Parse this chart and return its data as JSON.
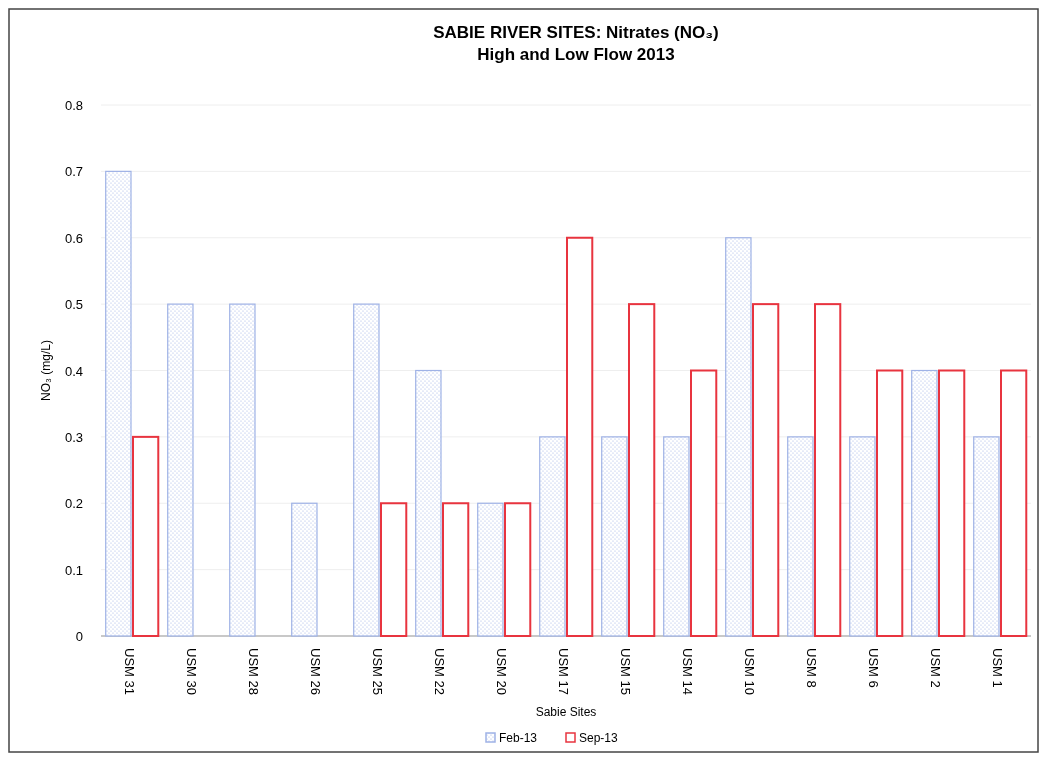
{
  "chart_data": {
    "type": "bar",
    "title": "SABIE RIVER SITES: Nitrates (NO₃)\nHigh and Low Flow 2013",
    "xlabel": "Sabie Sites",
    "ylabel": "NO₃ (mg/L)",
    "categories": [
      "USM 31",
      "USM 30",
      "USM 28",
      "USM 26",
      "USM 25",
      "USM 22",
      "USM 20",
      "USM 17",
      "USM 15",
      "USM 14",
      "USM 10",
      "USM 8",
      "USM 6",
      "USM 2",
      "USM 1"
    ],
    "series": [
      {
        "name": "Feb-13",
        "color": "#9fb2e6",
        "values": [
          0.7,
          0.5,
          0.5,
          0.2,
          0.5,
          0.4,
          0.2,
          0.3,
          0.3,
          0.3,
          0.6,
          0.3,
          0.3,
          0.4,
          0.3
        ]
      },
      {
        "name": "Sep-13",
        "color": "#e8343f",
        "values": [
          0.3,
          null,
          null,
          null,
          0.2,
          0.2,
          0.2,
          0.6,
          0.5,
          0.4,
          0.5,
          0.5,
          0.4,
          0.4,
          0.4
        ]
      }
    ],
    "ylim": [
      0,
      0.8
    ],
    "yticks": [
      0,
      0.1,
      0.2,
      0.3,
      0.4,
      0.5,
      0.6,
      0.7,
      0.8
    ],
    "grid": "y",
    "legend": "bottom"
  }
}
